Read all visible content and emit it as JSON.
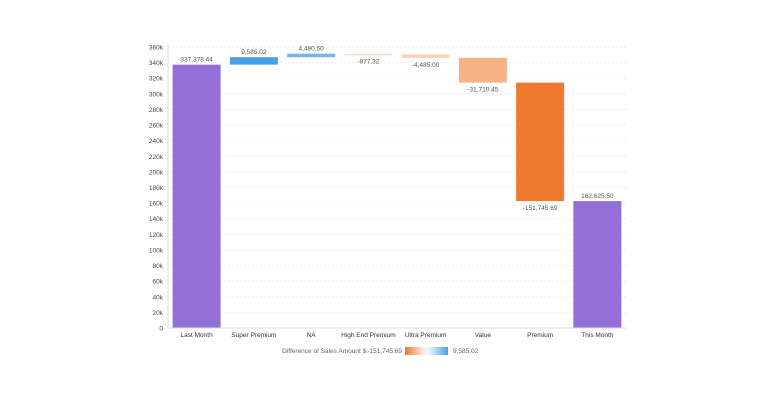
{
  "chart_data": {
    "type": "waterfall",
    "categories": [
      "Last Month",
      "Super Premium",
      "NA",
      "High End Premium",
      "Ultra Premium",
      "Value",
      "Premium",
      "This Month"
    ],
    "values": [
      337378.44,
      9585.02,
      4480.5,
      -877.32,
      -4485.0,
      -31710.45,
      -151745.69,
      162625.5
    ],
    "labels": [
      "337,378.44",
      "9,585.02",
      "4,480.50",
      "-877.32",
      "-4,485.00",
      "-31,710.45",
      "-151,745.69",
      "162,625.50"
    ],
    "totals": [
      true,
      false,
      false,
      false,
      false,
      false,
      false,
      true
    ],
    "ylim": [
      0,
      360000
    ],
    "yticks": [
      0,
      20000,
      40000,
      60000,
      80000,
      100000,
      120000,
      140000,
      160000,
      180000,
      200000,
      220000,
      240000,
      260000,
      280000,
      300000,
      320000,
      340000,
      360000
    ],
    "ytick_labels": [
      "0",
      "20k",
      "40k",
      "60k",
      "80k",
      "100k",
      "120k",
      "140k",
      "160k",
      "180k",
      "200k",
      "220k",
      "240k",
      "260k",
      "280k",
      "300k",
      "320k",
      "340k",
      "360k"
    ],
    "grid": true,
    "legend": {
      "title": "Difference of Sales Amount $:",
      "min_label": "-151,745.69",
      "max_label": "9,585.02",
      "min": -151745.69,
      "max": 9585.02,
      "placement": "bottom"
    },
    "colors": {
      "total": "#9370d8",
      "positive": "#4aa0e6",
      "positive_light": "#cfe6f8",
      "negative": "#ef7a2f",
      "negative_light": "#fce3cf"
    }
  }
}
